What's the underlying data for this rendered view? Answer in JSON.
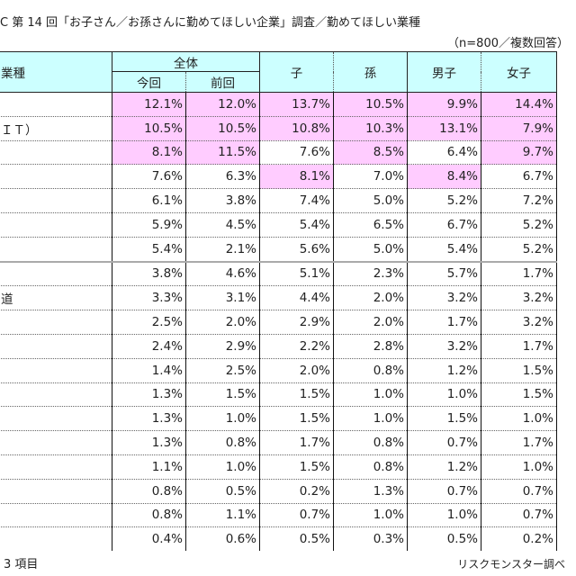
{
  "title": "C 第 14 回「お子さん／お孫さんに勤めてほしい企業」調査／勤めてほしい業種",
  "note": "（n=800／複数回答）",
  "table": {
    "headers": {
      "label": "業種",
      "group": "全体",
      "current": "今回",
      "previous": "前回",
      "child": "子",
      "grandchild": "孫",
      "male": "男子",
      "female": "女子"
    },
    "highlight_color": "#ffccff",
    "header_color": "#ccffff",
    "rows": [
      {
        "label": "",
        "values": [
          "12.1%",
          "12.0%",
          "13.7%",
          "10.5%",
          "9.9%",
          "14.4%"
        ],
        "pink": [
          true,
          true,
          true,
          true,
          true,
          true
        ]
      },
      {
        "label": "ＩＴ）",
        "values": [
          "10.5%",
          "10.5%",
          "10.8%",
          "10.3%",
          "13.1%",
          "7.9%"
        ],
        "pink": [
          true,
          true,
          true,
          true,
          true,
          true
        ]
      },
      {
        "label": "",
        "values": [
          "8.1%",
          "11.5%",
          "7.6%",
          "8.5%",
          "6.4%",
          "9.7%"
        ],
        "pink": [
          true,
          true,
          false,
          true,
          false,
          true
        ]
      },
      {
        "label": "",
        "values": [
          "7.6%",
          "6.3%",
          "8.1%",
          "7.0%",
          "8.4%",
          "6.7%"
        ],
        "pink": [
          false,
          false,
          true,
          false,
          true,
          false
        ]
      },
      {
        "label": "",
        "values": [
          "6.1%",
          "3.8%",
          "7.4%",
          "5.0%",
          "5.2%",
          "7.2%"
        ],
        "pink": [
          false,
          false,
          false,
          false,
          false,
          false
        ]
      },
      {
        "label": "",
        "values": [
          "5.9%",
          "4.5%",
          "5.4%",
          "6.5%",
          "6.7%",
          "5.2%"
        ],
        "pink": [
          false,
          false,
          false,
          false,
          false,
          false
        ]
      },
      {
        "label": "",
        "values": [
          "5.4%",
          "2.1%",
          "5.6%",
          "5.0%",
          "5.4%",
          "5.2%"
        ],
        "pink": [
          false,
          false,
          false,
          false,
          false,
          false
        ]
      },
      {
        "label": "",
        "values": [
          "3.8%",
          "4.6%",
          "5.1%",
          "2.3%",
          "5.7%",
          "1.7%"
        ],
        "pink": [
          false,
          false,
          false,
          false,
          false,
          false
        ]
      },
      {
        "label": "道",
        "values": [
          "3.3%",
          "3.1%",
          "4.4%",
          "2.0%",
          "3.2%",
          "3.2%"
        ],
        "pink": [
          false,
          false,
          false,
          false,
          false,
          false
        ]
      },
      {
        "label": "",
        "values": [
          "2.5%",
          "2.0%",
          "2.9%",
          "2.0%",
          "1.7%",
          "3.2%"
        ],
        "pink": [
          false,
          false,
          false,
          false,
          false,
          false
        ]
      },
      {
        "label": "",
        "values": [
          "2.4%",
          "2.9%",
          "2.2%",
          "2.8%",
          "3.2%",
          "1.7%"
        ],
        "pink": [
          false,
          false,
          false,
          false,
          false,
          false
        ]
      },
      {
        "label": "",
        "values": [
          "1.4%",
          "2.5%",
          "2.0%",
          "0.8%",
          "1.2%",
          "1.5%"
        ],
        "pink": [
          false,
          false,
          false,
          false,
          false,
          false
        ]
      },
      {
        "label": "",
        "values": [
          "1.3%",
          "1.5%",
          "1.5%",
          "1.0%",
          "1.0%",
          "1.5%"
        ],
        "pink": [
          false,
          false,
          false,
          false,
          false,
          false
        ]
      },
      {
        "label": "",
        "values": [
          "1.3%",
          "1.0%",
          "1.5%",
          "1.0%",
          "1.5%",
          "1.0%"
        ],
        "pink": [
          false,
          false,
          false,
          false,
          false,
          false
        ]
      },
      {
        "label": "",
        "values": [
          "1.3%",
          "0.8%",
          "1.7%",
          "0.8%",
          "0.7%",
          "1.7%"
        ],
        "pink": [
          false,
          false,
          false,
          false,
          false,
          false
        ]
      },
      {
        "label": "",
        "values": [
          "1.1%",
          "1.0%",
          "1.5%",
          "0.8%",
          "1.2%",
          "1.0%"
        ],
        "pink": [
          false,
          false,
          false,
          false,
          false,
          false
        ]
      },
      {
        "label": "",
        "values": [
          "0.8%",
          "0.5%",
          "0.2%",
          "1.3%",
          "0.7%",
          "0.7%"
        ],
        "pink": [
          false,
          false,
          false,
          false,
          false,
          false
        ]
      },
      {
        "label": "",
        "values": [
          "0.8%",
          "1.1%",
          "0.7%",
          "1.0%",
          "1.0%",
          "0.7%"
        ],
        "pink": [
          false,
          false,
          false,
          false,
          false,
          false
        ]
      },
      {
        "label": "",
        "values": [
          "0.4%",
          "0.6%",
          "0.5%",
          "0.3%",
          "0.5%",
          "0.2%"
        ],
        "pink": [
          false,
          false,
          false,
          false,
          false,
          false
        ]
      }
    ]
  },
  "footer": {
    "left": "3 項目",
    "right": "リスクモンスター調べ"
  }
}
